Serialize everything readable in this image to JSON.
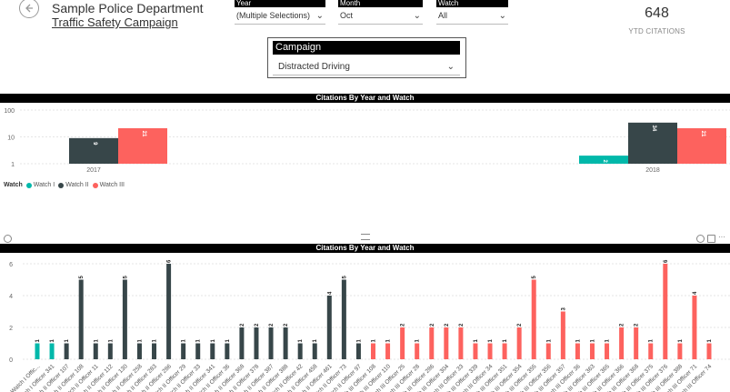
{
  "header": {
    "department": "Sample Police Department",
    "campaign_title": "Traffic Safety Campaign"
  },
  "filters": {
    "year": {
      "label": "Year",
      "value": "(Multiple Selections)"
    },
    "month": {
      "label": "Month",
      "value": "Oct"
    },
    "watch": {
      "label": "Watch",
      "value": "All"
    }
  },
  "kpi": {
    "value": "648",
    "label": "YTD CITATIONS"
  },
  "campaign": {
    "label": "Campaign",
    "value": "Distracted Driving"
  },
  "colors": {
    "watch1": "#01B8AA",
    "watch2": "#374649",
    "watch3": "#FD625E"
  },
  "icons": [
    "back-arrow-icon",
    "chevron-down-icon",
    "drag-grip-icon",
    "filter-icon",
    "focus-mode-icon",
    "more-options-icon"
  ],
  "chart_data": [
    {
      "type": "bar",
      "title": "Citations By  Year and Watch",
      "scale": "log",
      "ylim": [
        1,
        100
      ],
      "y_ticks": [
        "100",
        "10",
        "1"
      ],
      "categories": [
        "2017",
        "2018"
      ],
      "legend_title": "Watch",
      "series": [
        {
          "name": "Watch I",
          "values": [
            null,
            2
          ]
        },
        {
          "name": "Watch II",
          "values": [
            9,
            34
          ]
        },
        {
          "name": "Watch III",
          "values": [
            21,
            21
          ]
        }
      ],
      "legend_position": "bottom-left",
      "grid": true
    },
    {
      "type": "bar",
      "title": "Citations By  Year and Watch",
      "ylim": [
        0,
        6
      ],
      "y_ticks": [
        "0",
        "2",
        "4",
        "6"
      ],
      "grid": true,
      "bars": [
        {
          "label": "Watch I Offic...",
          "value": 1,
          "s": 1
        },
        {
          "label": "Watch I Officer 341",
          "value": 1,
          "s": 1
        },
        {
          "label": "Watch II Officer 107",
          "value": 1,
          "s": 2
        },
        {
          "label": "Watch II Officer 108",
          "value": 5,
          "s": 2
        },
        {
          "label": "Watch II Officer 11",
          "value": 1,
          "s": 2
        },
        {
          "label": "Watch II Officer 112",
          "value": 1,
          "s": 2
        },
        {
          "label": "Watch II Officer 130",
          "value": 5,
          "s": 2
        },
        {
          "label": "Watch II Officer 258",
          "value": 1,
          "s": 2
        },
        {
          "label": "Watch II Officer 283",
          "value": 1,
          "s": 2
        },
        {
          "label": "Watch II Officer 286",
          "value": 6,
          "s": 2
        },
        {
          "label": "Watch II Officer 29",
          "value": 1,
          "s": 2
        },
        {
          "label": "Watch II Officer 33",
          "value": 1,
          "s": 2
        },
        {
          "label": "Watch II Officer 341",
          "value": 1,
          "s": 2
        },
        {
          "label": "Watch II Officer 36",
          "value": 1,
          "s": 2
        },
        {
          "label": "Watch II Officer 368",
          "value": 2,
          "s": 2
        },
        {
          "label": "Watch II Officer 378",
          "value": 2,
          "s": 2
        },
        {
          "label": "Watch II Officer 387",
          "value": 2,
          "s": 2
        },
        {
          "label": "Watch II Officer 388",
          "value": 2,
          "s": 2
        },
        {
          "label": "Watch II Officer 42",
          "value": 1,
          "s": 2
        },
        {
          "label": "Watch II Officer 458",
          "value": 1,
          "s": 2
        },
        {
          "label": "Watch II Officer 461",
          "value": 4,
          "s": 2
        },
        {
          "label": "Watch II Officer 73",
          "value": 5,
          "s": 2
        },
        {
          "label": "Watch II Officer 97",
          "value": 1,
          "s": 2
        },
        {
          "label": "Watch III Officer 108",
          "value": 1,
          "s": 3
        },
        {
          "label": "Watch III Officer 110",
          "value": 1,
          "s": 3
        },
        {
          "label": "Watch III Officer 25",
          "value": 2,
          "s": 3
        },
        {
          "label": "Watch III Officer 28",
          "value": 1,
          "s": 3
        },
        {
          "label": "Watch III Officer 286",
          "value": 2,
          "s": 3
        },
        {
          "label": "Watch III Officer 304",
          "value": 2,
          "s": 3
        },
        {
          "label": "Watch III Officer 33",
          "value": 2,
          "s": 3
        },
        {
          "label": "Watch III Officer 339",
          "value": 1,
          "s": 3
        },
        {
          "label": "Watch III Officer 34",
          "value": 1,
          "s": 3
        },
        {
          "label": "Watch III Officer 351",
          "value": 1,
          "s": 3
        },
        {
          "label": "Watch III Officer 354",
          "value": 2,
          "s": 3
        },
        {
          "label": "Watch III Officer 355",
          "value": 5,
          "s": 3
        },
        {
          "label": "Watch III Officer 356",
          "value": 1,
          "s": 3
        },
        {
          "label": "Watch III Officer 357",
          "value": 3,
          "s": 3
        },
        {
          "label": "Watch III Officer 36",
          "value": 1,
          "s": 3
        },
        {
          "label": "Watch III Officer 363",
          "value": 1,
          "s": 3
        },
        {
          "label": "Watch III Officer 365",
          "value": 1,
          "s": 3
        },
        {
          "label": "Watch III Officer 366",
          "value": 2,
          "s": 3
        },
        {
          "label": "Watch III Officer 368",
          "value": 2,
          "s": 3
        },
        {
          "label": "Watch III Officer 375",
          "value": 1,
          "s": 3
        },
        {
          "label": "Watch III Officer 376",
          "value": 6,
          "s": 3
        },
        {
          "label": "Watch III Officer 388",
          "value": 1,
          "s": 3
        },
        {
          "label": "Watch III Officer 71",
          "value": 4,
          "s": 3
        },
        {
          "label": "Watch III Officer 74",
          "value": 1,
          "s": 3
        }
      ]
    }
  ]
}
